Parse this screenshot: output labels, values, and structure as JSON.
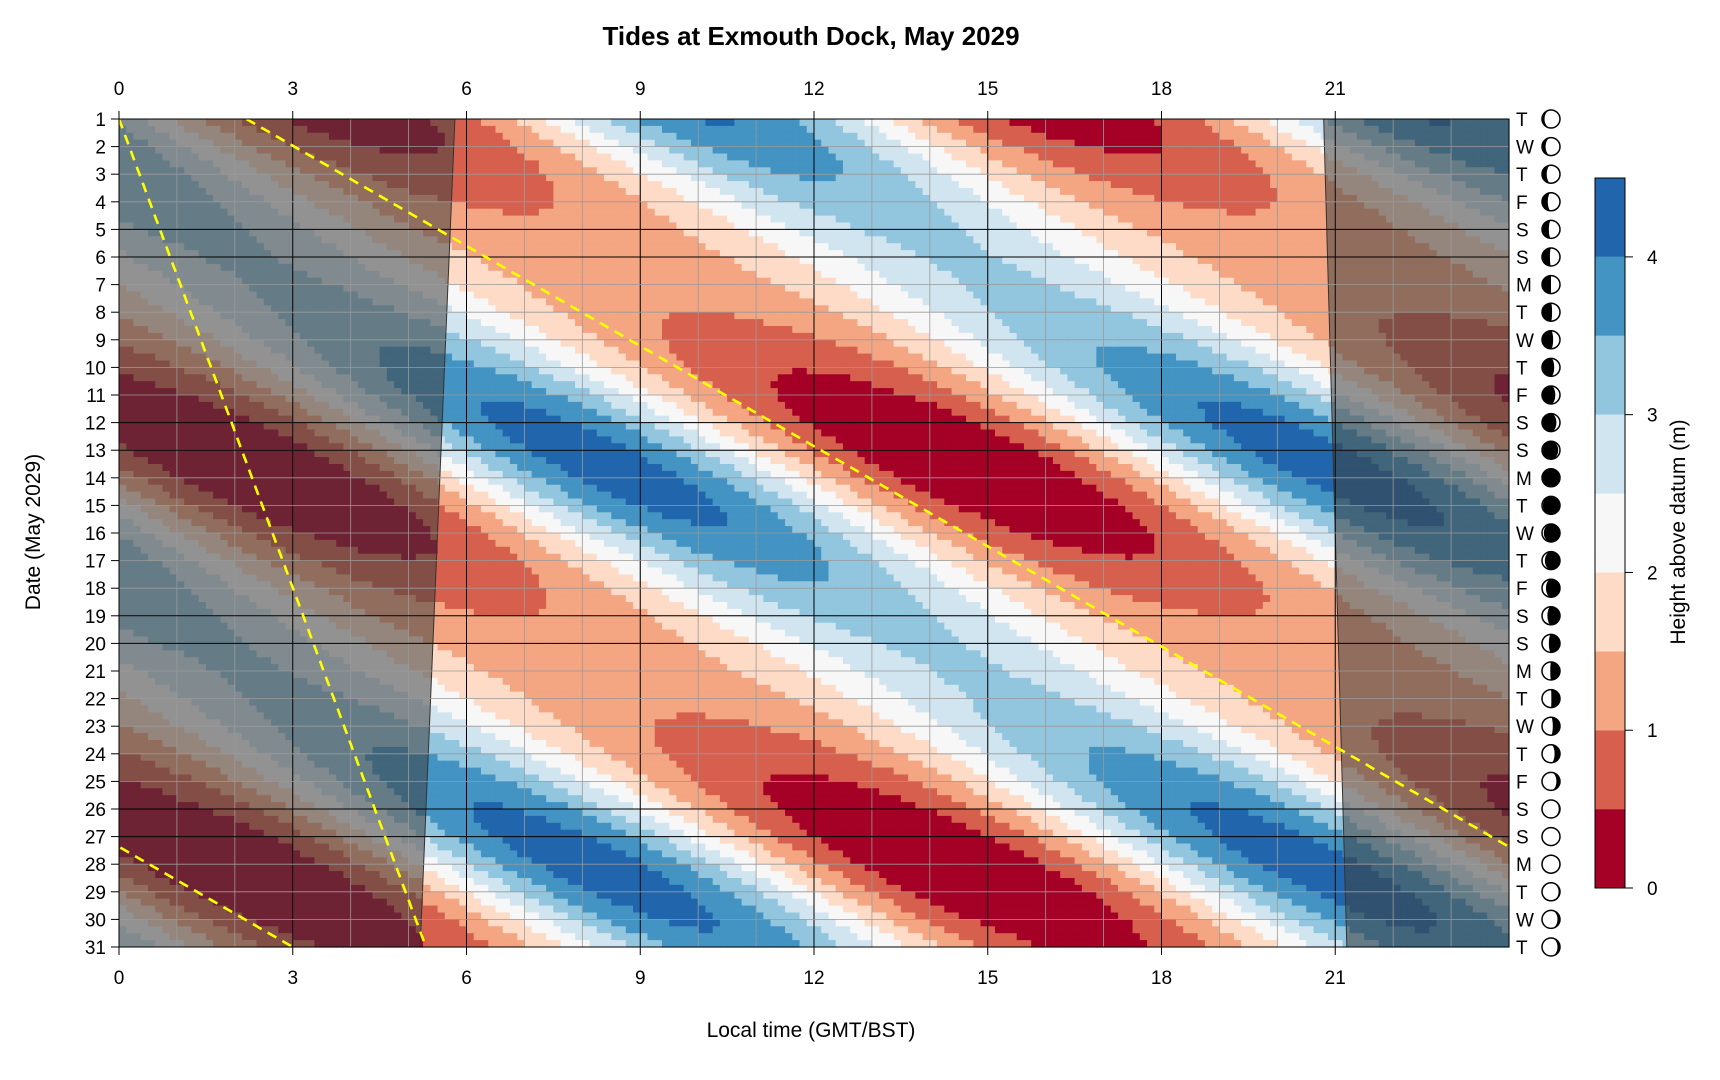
{
  "chart_data": {
    "type": "heatmap",
    "title": "Tides at Exmouth Dock, May 2029",
    "xlabel": "Local time (GMT/BST)",
    "ylabel": "Date (May 2029)",
    "colorbar_label": "Height above datum (m)",
    "xlim": [
      0,
      24
    ],
    "ylim": [
      1,
      31
    ],
    "x_ticks": [
      0,
      3,
      6,
      9,
      12,
      15,
      18,
      21
    ],
    "y_ticks": [
      1,
      2,
      3,
      4,
      5,
      6,
      7,
      8,
      9,
      10,
      11,
      12,
      13,
      14,
      15,
      16,
      17,
      18,
      19,
      20,
      21,
      22,
      23,
      24,
      25,
      26,
      27,
      28,
      29,
      30,
      31
    ],
    "colorbar_ticks": [
      0,
      1,
      2,
      3,
      4
    ],
    "contour_levels": [
      0,
      0.5,
      1.0,
      1.5,
      2.0,
      2.5,
      3.0,
      3.5,
      4.0,
      4.5
    ],
    "level_colors": [
      "#a50026",
      "#d6604d",
      "#f4a582",
      "#fddbc7",
      "#f7f7f7",
      "#d1e5f0",
      "#92c5de",
      "#4393c3",
      "#2166ac"
    ],
    "tide_model": {
      "mean_level_m": 2.0,
      "semidiurnal_amplitude_m": 1.55,
      "spring_neap_amplitude_m": 0.6,
      "spring_peak_days": [
        13.5,
        27.8
      ],
      "high_water_time_day1_h": 10.3,
      "daily_lag_h": 0.84,
      "period_h": 12.42
    },
    "darkness": {
      "sunrise_h": [
        5.8,
        5.2
      ],
      "sunset_h": [
        20.8,
        21.2
      ],
      "overlay_color": "#404040"
    },
    "moonrise_lines": {
      "color": "#ffff00",
      "segments": [
        {
          "start": [
            0.0,
            4.2
          ],
          "end": [
            5.3,
            27.8
          ]
        },
        {
          "start": [
            2.2,
            29.2
          ],
          "end": [
            27.0,
            59.0
          ]
        }
      ]
    },
    "day_rows": [
      {
        "day": "T",
        "moon": 0.86
      },
      {
        "day": "W",
        "moon": 0.8
      },
      {
        "day": "T",
        "moon": 0.74
      },
      {
        "day": "F",
        "moon": 0.68
      },
      {
        "day": "S",
        "moon": 0.62
      },
      {
        "day": "S",
        "moon": 0.56
      },
      {
        "day": "M",
        "moon": 0.5
      },
      {
        "day": "T",
        "moon": 0.44
      },
      {
        "day": "W",
        "moon": 0.38
      },
      {
        "day": "T",
        "moon": 0.32
      },
      {
        "day": "F",
        "moon": 0.26
      },
      {
        "day": "S",
        "moon": 0.2
      },
      {
        "day": "S",
        "moon": 0.1
      },
      {
        "day": "M",
        "moon": 0.03
      },
      {
        "day": "T",
        "moon": 0.05
      },
      {
        "day": "W",
        "moon": 0.1
      },
      {
        "day": "T",
        "moon": 0.16
      },
      {
        "day": "F",
        "moon": 0.22
      },
      {
        "day": "S",
        "moon": 0.3
      },
      {
        "day": "S",
        "moon": 0.38
      },
      {
        "day": "M",
        "moon": 0.46
      },
      {
        "day": "T",
        "moon": 0.52
      },
      {
        "day": "W",
        "moon": 0.6
      },
      {
        "day": "T",
        "moon": 0.7
      },
      {
        "day": "F",
        "moon": 0.8
      },
      {
        "day": "S",
        "moon": 0.93
      },
      {
        "day": "S",
        "moon": 0.98
      },
      {
        "day": "M",
        "moon": 0.99
      },
      {
        "day": "T",
        "moon": 0.92
      },
      {
        "day": "W",
        "moon": 0.86
      },
      {
        "day": "T",
        "moon": 0.86
      }
    ]
  }
}
